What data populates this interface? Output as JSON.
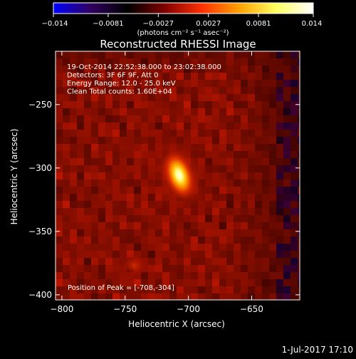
{
  "chart_data": {
    "type": "heatmap",
    "title": "Reconstructed RHESSI Image",
    "xlabel": "Heliocentric X (arcsec)",
    "ylabel": "Heliocentric Y (arcsec)",
    "xlim": [
      -805,
      -612
    ],
    "ylim": [
      -404,
      -208
    ],
    "x_ticks": [
      -800,
      -750,
      -700,
      -650
    ],
    "y_ticks": [
      -250,
      -300,
      -350,
      -400
    ],
    "colorbar": {
      "range": [
        -0.014,
        0.014
      ],
      "tick_values": [
        -0.014,
        -0.0081,
        -0.0027,
        0.0027,
        0.0081,
        0.014
      ],
      "tick_labels": [
        "−0.014",
        "−0.0081",
        "−0.0027",
        "0.0027",
        "0.0081",
        "0.014"
      ],
      "units_label": "(photons cm⁻² s⁻¹ asec⁻²)",
      "colormap": [
        "#0000ff",
        "#300060",
        "#000000",
        "#800000",
        "#ff3000",
        "#ffa000",
        "#ffff60",
        "#ffffff"
      ]
    },
    "annotations": [
      "19-Oct-2014 22:52:38.000 to 23:02:38.000",
      "Detectors: 3F 6F 9F, Att 0",
      "Energy Range: 12.0 - 25.0 keV",
      "Clean     Total counts: 1.60E+04"
    ],
    "peak_label": "Position of Peak = [-708,-304]",
    "sources": [
      {
        "x": -709,
        "y": -304,
        "peak": 1.0
      },
      {
        "x": -743,
        "y": -377,
        "peak": 0.35
      }
    ]
  },
  "footer": {
    "date": "1-Jul-2017 17:10"
  }
}
